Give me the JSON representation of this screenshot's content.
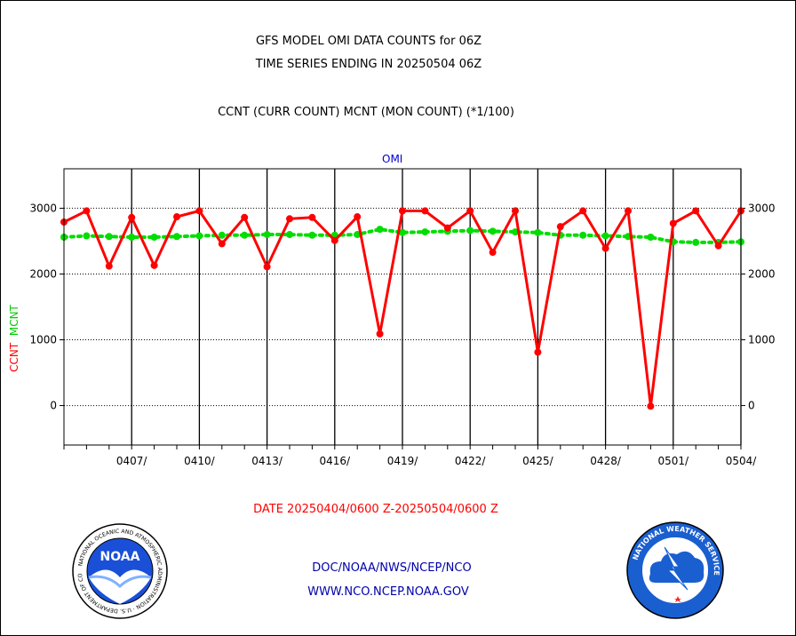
{
  "header": {
    "title_line1": "GFS MODEL OMI DATA COUNTS for 06Z",
    "title_line2": "TIME SERIES ENDING IN 20250504 06Z",
    "subtitle": "CCNT (CURR COUNT) MCNT (MON COUNT) (*1/100)"
  },
  "chart_data": {
    "type": "line",
    "title": "OMI",
    "ylabel_ccnt": "CCNT",
    "ylabel_mcnt": "MCNT",
    "xlabel": "DATE 20250404/0600 Z-20250504/0600 Z",
    "ylim": [
      -600,
      3600
    ],
    "yticks": [
      "0",
      "1000",
      "2000",
      "3000"
    ],
    "ytick_values": [
      0,
      1000,
      2000,
      3000
    ],
    "xticks": [
      "0407/",
      "0410/",
      "0413/",
      "0416/",
      "0419/",
      "0422/",
      "0425/",
      "0428/",
      "0501/",
      "0504/"
    ],
    "xtick_days": [
      3,
      6,
      9,
      12,
      15,
      18,
      21,
      24,
      27,
      30
    ],
    "xlim_days": [
      0,
      30
    ],
    "grid": true,
    "x_days": [
      0,
      1,
      2,
      3,
      4,
      5,
      6,
      7,
      8,
      9,
      10,
      11,
      12,
      13,
      14,
      15,
      16,
      17,
      18,
      19,
      20,
      21,
      22,
      23,
      24,
      25,
      26,
      27,
      28,
      29,
      30
    ],
    "series": [
      {
        "name": "CCNT",
        "color": "#ff0000",
        "values": [
          2790,
          2960,
          2120,
          2860,
          2130,
          2870,
          2960,
          2460,
          2860,
          2110,
          2840,
          2860,
          2510,
          2870,
          1090,
          2960,
          2960,
          2700,
          2960,
          2330,
          2960,
          810,
          2720,
          2960,
          2390,
          2960,
          -10,
          2770,
          2960,
          2430,
          2960
        ]
      },
      {
        "name": "MCNT",
        "color": "#00dd00",
        "values": [
          2560,
          2580,
          2570,
          2560,
          2560,
          2570,
          2580,
          2590,
          2590,
          2600,
          2600,
          2590,
          2590,
          2600,
          2680,
          2630,
          2640,
          2650,
          2660,
          2650,
          2640,
          2630,
          2590,
          2590,
          2580,
          2570,
          2560,
          2490,
          2480,
          2480,
          2490
        ]
      }
    ]
  },
  "footer": {
    "link1": "DOC/NOAA/NWS/NCEP/NCO",
    "link2": "WWW.NCO.NCEP.NOAA.GOV"
  },
  "logos": {
    "noaa_text": "NOAA",
    "nws_text": "NATIONAL WEATHER SERVICE",
    "noaa_ring_text": "NATIONAL OCEANIC AND ATMOSPHERIC ADMINISTRATION · U.S. DEPARTMENT OF COMMERCE"
  },
  "colors": {
    "ccnt": "#ff0000",
    "mcnt": "#00dd00",
    "footer": "#0000aa",
    "panel": "#0000cc"
  }
}
